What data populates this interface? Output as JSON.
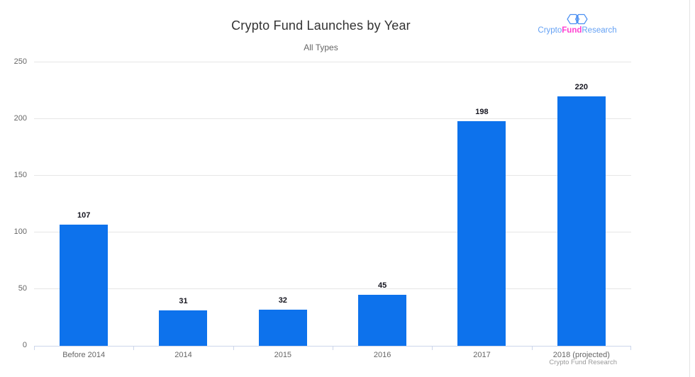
{
  "chart_data": {
    "type": "bar",
    "title": "Crypto Fund Launches by Year",
    "subtitle": "All Types",
    "categories": [
      "Before 2014",
      "2014",
      "2015",
      "2016",
      "2017",
      "2018 (projected)"
    ],
    "values": [
      107,
      31,
      32,
      45,
      198,
      220
    ],
    "value_labels_shown": true,
    "xlabel": "",
    "ylabel": "",
    "ylim": [
      0,
      250
    ],
    "yticks": [
      0,
      50,
      100,
      150,
      200,
      250
    ],
    "grid": true,
    "legend": "none"
  },
  "logo": {
    "icon": "hexagons-icon",
    "word1": "Crypto",
    "word2": "Fund",
    "word3": "Research"
  },
  "credit": "Crypto Fund Research",
  "colors": {
    "bar": "#0d72ec",
    "gridline": "#e6e6e6",
    "axis_line": "#ccd6eb",
    "title": "#333333",
    "subtitle": "#666666",
    "axis_labels": "#666666",
    "value_labels": "#15151f",
    "credit": "#999999",
    "logo_blue": "#64a1f4",
    "logo_pink": "#ff3fd0",
    "logo_icon_stroke": "#4a8ff2",
    "background": "#ffffff"
  }
}
